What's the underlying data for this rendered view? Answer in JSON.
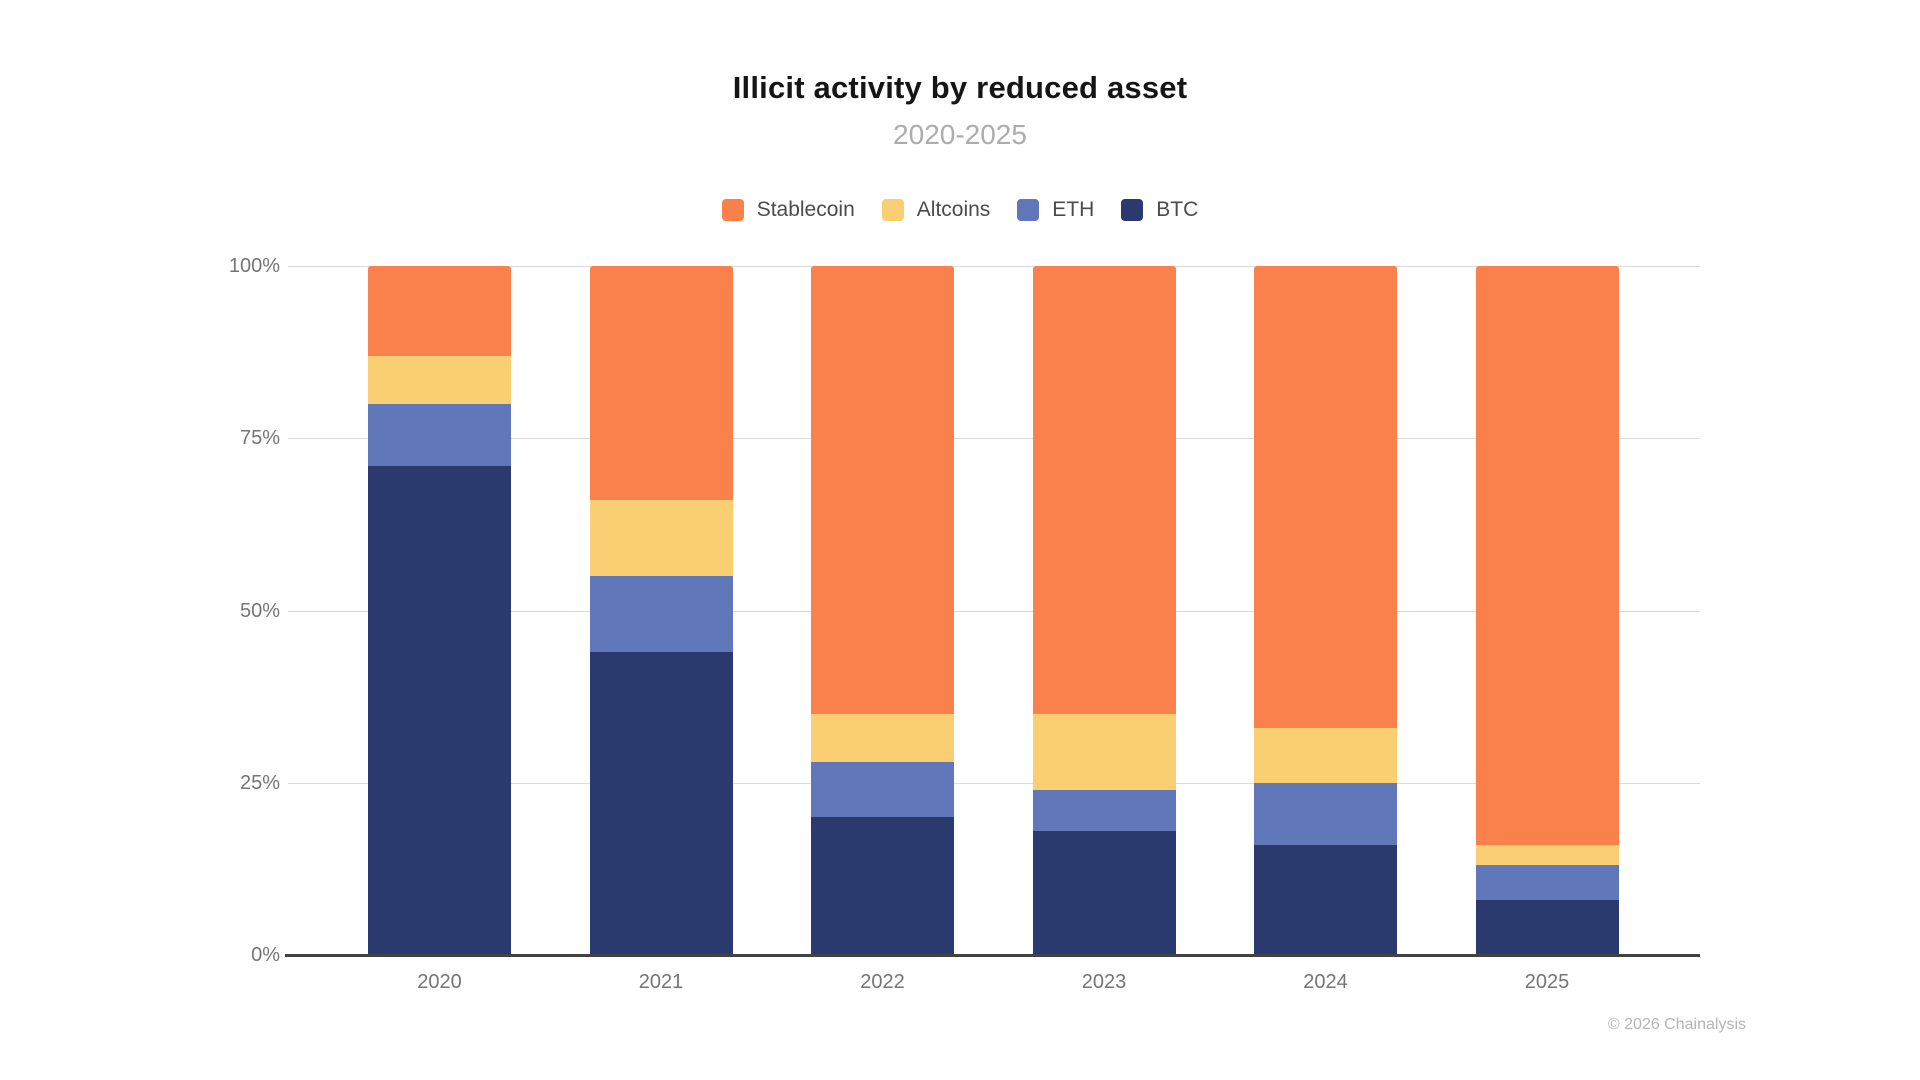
{
  "header": {
    "title": "Illicit activity by reduced asset",
    "subtitle": "2020-2025"
  },
  "legend": {
    "position": "top",
    "items": [
      {
        "label": "Stablecoin",
        "color": "#FA814B"
      },
      {
        "label": "Altcoins",
        "color": "#FACF73"
      },
      {
        "label": "ETH",
        "color": "#6078B9"
      },
      {
        "label": "BTC",
        "color": "#2A396E"
      }
    ]
  },
  "footer": {
    "copyright": "© 2026 Chainalysis"
  },
  "chart_data": {
    "type": "bar",
    "stacked": true,
    "unit": "percent",
    "title": "Illicit activity by reduced asset",
    "subtitle": "2020-2025",
    "categories": [
      "2020",
      "2021",
      "2022",
      "2023",
      "2024",
      "2025"
    ],
    "series": [
      {
        "name": "Stablecoin",
        "color": "#FA814B",
        "values": [
          13,
          34,
          65,
          65,
          67,
          84
        ]
      },
      {
        "name": "Altcoins",
        "color": "#FACF73",
        "values": [
          7,
          11,
          7,
          11,
          8,
          3
        ]
      },
      {
        "name": "ETH",
        "color": "#6078B9",
        "values": [
          9,
          11,
          8,
          6,
          9,
          5
        ]
      },
      {
        "name": "BTC",
        "color": "#2A396E",
        "values": [
          71,
          44,
          20,
          18,
          16,
          8
        ]
      }
    ],
    "stack_order_top_to_bottom": [
      "Stablecoin",
      "Altcoins",
      "ETH",
      "BTC"
    ],
    "ylim": [
      0,
      100
    ],
    "ytick_labels_top_to_bottom": [
      "100%",
      "75%",
      "50%",
      "25%",
      "0%"
    ],
    "grid": true,
    "legend_position": "top"
  }
}
